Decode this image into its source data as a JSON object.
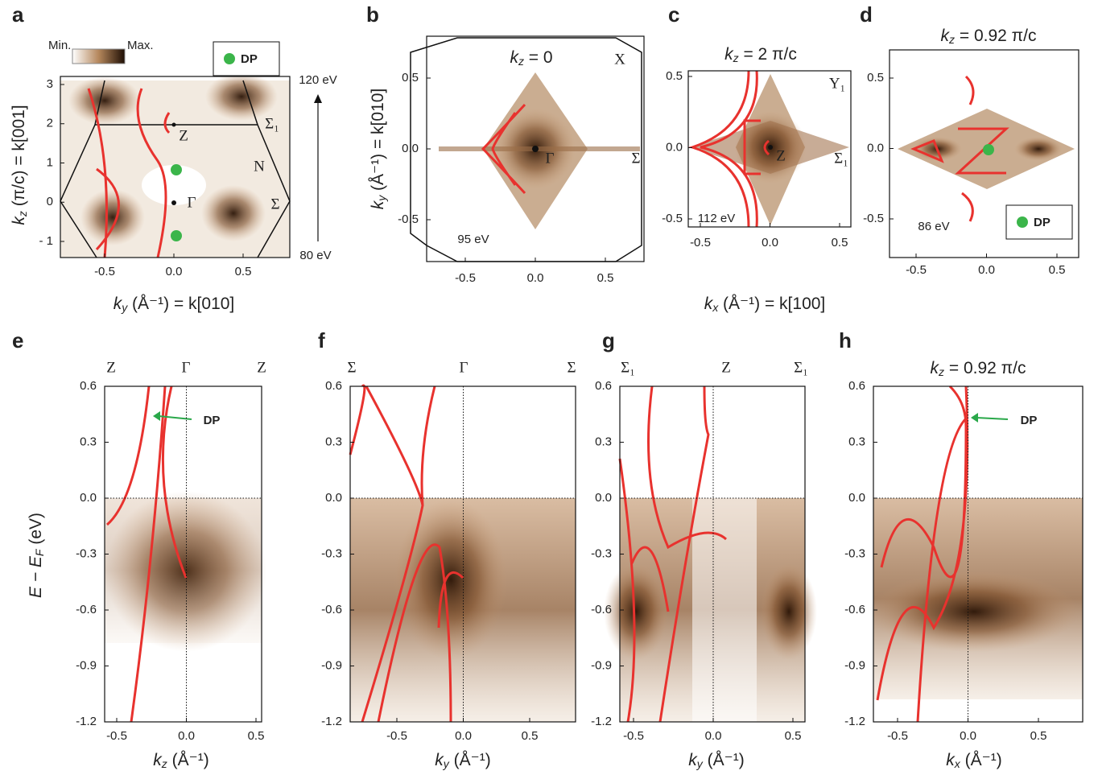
{
  "panels": [
    {
      "letter": "a",
      "colorbar": {
        "min": "Min.",
        "max": "Max."
      },
      "legend": "DP",
      "x_ticks": [
        "-0.5",
        "0.0",
        "0.5"
      ],
      "y_ticks": [
        "3",
        "2",
        "1",
        "0",
        "- 1"
      ],
      "x_label": {
        "k": "k",
        "sub": "y",
        "rest": " (Å⁻¹) = k[010]"
      },
      "y_label": {
        "k": "k",
        "sub": "z",
        "rest": " (π/c) = k[001]"
      },
      "annotations": [
        "Z",
        "Σ₁",
        "N",
        "Σ",
        "Γ",
        "120 eV",
        "80 eV"
      ]
    },
    {
      "letter": "b",
      "title": {
        "k": "k",
        "sub": "z",
        "rest": " = 0"
      },
      "x_ticks": [
        "-0.5",
        "0.0",
        "0.5"
      ],
      "y_ticks": [
        "0.5",
        "0.0",
        "-0.5"
      ],
      "y_label": {
        "k": "k",
        "sub": "y",
        "rest": " (Å⁻¹) = k[010]"
      },
      "annotations": [
        "X",
        "Σ",
        "Γ",
        "95 eV"
      ]
    },
    {
      "letter": "c",
      "title": {
        "k": "k",
        "sub": "z",
        "rest": " = 2 π/c"
      },
      "x_ticks": [
        "-0.5",
        "0.0",
        "0.5"
      ],
      "y_ticks": [
        "0.5",
        "0.0",
        "-0.5"
      ],
      "x_label": {
        "k": "k",
        "sub": "x",
        "rest": " (Å⁻¹) = k[100]"
      },
      "annotations": [
        "Y₁",
        "Z",
        "Σ₁",
        "112 eV"
      ]
    },
    {
      "letter": "d",
      "title": {
        "k": "k",
        "sub": "z",
        "rest": " = 0.92 π/c"
      },
      "legend": "DP",
      "x_ticks": [
        "-0.5",
        "0.0",
        "0.5"
      ],
      "y_ticks": [
        "0.5",
        "0.0",
        "-0.5"
      ],
      "annotations": [
        "86 eV"
      ]
    },
    {
      "letter": "e",
      "top_labels": [
        "Z",
        "Γ",
        "Z"
      ],
      "callout": "DP",
      "x_ticks": [
        "-0.5",
        "0.0",
        "0.5"
      ],
      "x_label": {
        "k": "k",
        "sub": "z",
        "rest": " (Å⁻¹)"
      }
    },
    {
      "letter": "f",
      "top_labels": [
        "Σ",
        "Γ",
        "Σ"
      ],
      "x_ticks": [
        "-0.5",
        "0.0",
        "0.5"
      ],
      "x_label": {
        "k": "k",
        "sub": "y",
        "rest": " (Å⁻¹)"
      }
    },
    {
      "letter": "g",
      "top_labels": [
        "Σ₁",
        "Z",
        "Σ₁"
      ],
      "x_ticks": [
        "-0.5",
        "0.0",
        "0.5"
      ],
      "x_label": {
        "k": "k",
        "sub": "y",
        "rest": " (Å⁻¹)"
      }
    },
    {
      "letter": "h",
      "title": {
        "k": "k",
        "sub": "z",
        "rest": " = 0.92 π/c"
      },
      "callout": "DP",
      "x_ticks": [
        "-0.5",
        "0.0",
        "0.5"
      ],
      "x_label": {
        "k": "k",
        "sub": "x",
        "rest": " (Å⁻¹)"
      }
    }
  ],
  "energy_axis": {
    "label": {
      "k": "E − E",
      "sub": "F",
      "rest": " (eV)"
    },
    "ticks": [
      "0.6",
      "0.3",
      "0.0",
      "-0.3",
      "-0.6",
      "-0.9",
      "-1.2"
    ]
  }
}
